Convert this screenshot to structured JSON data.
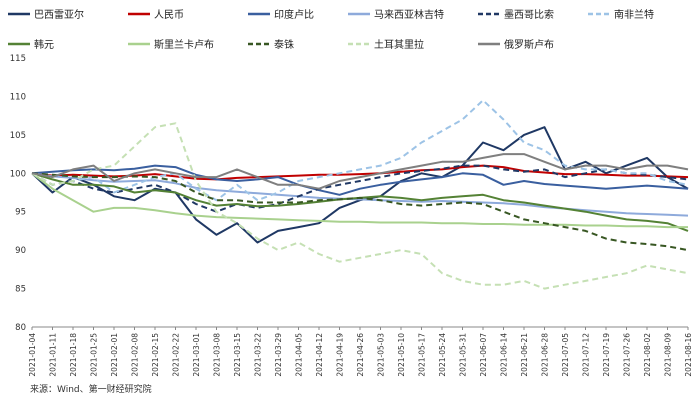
{
  "source_note": "来源：Wind、第一财经研究院",
  "chart_data": {
    "type": "line",
    "title": "",
    "xlabel": "",
    "ylabel": "",
    "ylim": [
      80,
      115
    ],
    "yticks": [
      80,
      85,
      90,
      95,
      100,
      105,
      110,
      115
    ],
    "grid": false,
    "legend_position": "top",
    "x_tick_labels": [
      "2021-01-04",
      "2021-01-11",
      "2021-01-18",
      "2021-01-25",
      "2021-02-01",
      "2021-02-08",
      "2021-02-15",
      "2021-02-22",
      "2021-03-01",
      "2021-03-08",
      "2021-03-15",
      "2021-03-22",
      "2021-03-29",
      "2021-04-05",
      "2021-04-12",
      "2021-04-19",
      "2021-04-26",
      "2021-05-03",
      "2021-05-10",
      "2021-05-17",
      "2021-05-24",
      "2021-05-31",
      "2021-06-07",
      "2021-06-14",
      "2021-06-21",
      "2021-06-28",
      "2021-07-05",
      "2021-07-12",
      "2021-07-19",
      "2021-07-26",
      "2021-08-02",
      "2021-08-09",
      "2021-08-16"
    ],
    "series": [
      {
        "name": "巴西雷亚尔",
        "color": "#1f3864",
        "dash": "solid",
        "values": [
          100,
          97.5,
          99.5,
          98.5,
          97,
          96.5,
          98,
          97.5,
          94,
          92,
          93.5,
          91,
          92.5,
          93,
          93.5,
          95.5,
          96.5,
          97,
          99,
          100,
          99.5,
          101,
          104,
          103,
          105,
          106,
          100.5,
          101.5,
          100,
          101,
          102,
          99.5,
          98
        ]
      },
      {
        "name": "人民币",
        "color": "#c00000",
        "dash": "solid",
        "values": [
          100,
          99.7,
          99.8,
          99.7,
          99.6,
          99.7,
          99.9,
          99.6,
          99.3,
          99.2,
          99.4,
          99.5,
          99.6,
          99.7,
          99.8,
          99.8,
          99.9,
          100,
          100.2,
          100.4,
          100.5,
          100.8,
          101,
          100.8,
          100.3,
          100.1,
          99.9,
          99.9,
          99.8,
          99.7,
          99.7,
          99.6,
          99.5
        ]
      },
      {
        "name": "印度卢比",
        "color": "#3a5f9f",
        "dash": "solid",
        "values": [
          100,
          100.2,
          100.4,
          100.5,
          100.4,
          100.6,
          101,
          100.8,
          99.8,
          99.2,
          99,
          99.2,
          99.5,
          98.5,
          97.8,
          97.2,
          98,
          98.5,
          98.9,
          99.2,
          99.5,
          100,
          99.8,
          98.5,
          99,
          98.6,
          98.4,
          98.2,
          98,
          98.2,
          98.4,
          98.2,
          98
        ]
      },
      {
        "name": "马来西亚林吉特",
        "color": "#8eaadb",
        "dash": "solid",
        "values": [
          100,
          99.6,
          99.4,
          99.1,
          98.9,
          99,
          99.1,
          98.7,
          98.1,
          97.8,
          97.6,
          97.4,
          97.2,
          97,
          96.8,
          96.7,
          96.6,
          96.5,
          96.4,
          96.3,
          96.4,
          96.3,
          96.2,
          96.1,
          95.9,
          95.6,
          95.4,
          95.2,
          95,
          94.8,
          94.7,
          94.6,
          94.5
        ]
      },
      {
        "name": "墨西哥比索",
        "color": "#203864",
        "dash": "dash",
        "values": [
          100,
          98.5,
          99,
          98,
          97.5,
          98,
          98.5,
          97.5,
          96,
          95,
          96,
          95.5,
          96,
          97,
          98,
          98.5,
          99,
          99.5,
          100,
          100.3,
          100.6,
          101,
          101,
          100.5,
          100.2,
          100.5,
          99.5,
          100,
          100.5,
          100,
          99.8,
          99.5,
          99.2
        ]
      },
      {
        "name": "南非兰特",
        "color": "#9dc3e6",
        "dash": "dash",
        "values": [
          100,
          98.5,
          99,
          99.5,
          97.5,
          98.5,
          99.5,
          100,
          98,
          96.5,
          98.5,
          96.5,
          97.5,
          99,
          99.5,
          100,
          100.5,
          101,
          102,
          104,
          105.5,
          107,
          109.5,
          107,
          104,
          103,
          101,
          100.5,
          100.5,
          100,
          100,
          99,
          98.5
        ]
      },
      {
        "name": "韩元",
        "color": "#548235",
        "dash": "solid",
        "values": [
          100,
          99.2,
          98.5,
          98.5,
          98.3,
          97.5,
          97.8,
          97.5,
          96.5,
          95.8,
          96,
          95.7,
          95.8,
          96,
          96.3,
          96.6,
          96.8,
          97,
          96.8,
          96.5,
          96.8,
          97,
          97.2,
          96.5,
          96.2,
          95.8,
          95.4,
          95,
          94.5,
          94,
          93.8,
          93.5,
          92.5
        ]
      },
      {
        "name": "斯里兰卡卢布",
        "color": "#a9d18e",
        "dash": "solid",
        "values": [
          100,
          98,
          96.5,
          95,
          95.5,
          95.5,
          95.2,
          94.8,
          94.5,
          94.3,
          94.2,
          94.1,
          94,
          93.9,
          93.8,
          93.7,
          93.7,
          93.6,
          93.6,
          93.6,
          93.5,
          93.5,
          93.4,
          93.4,
          93.3,
          93.3,
          93.3,
          93.2,
          93.2,
          93.1,
          93.1,
          93,
          93
        ]
      },
      {
        "name": "泰铢",
        "color": "#385723",
        "dash": "dash",
        "values": [
          100,
          99.8,
          99.6,
          99.5,
          99.5,
          99.6,
          99.5,
          99,
          97.5,
          96.5,
          96.5,
          96.2,
          96.2,
          96.2,
          96.5,
          96.6,
          96.8,
          96.5,
          96,
          95.8,
          96,
          96.2,
          96,
          95,
          94,
          93.5,
          93,
          92.5,
          91.5,
          91,
          90.8,
          90.5,
          90
        ]
      },
      {
        "name": "土耳其里拉",
        "color": "#c5e0b4",
        "dash": "dash",
        "values": [
          100,
          98.5,
          99,
          100.5,
          101,
          103.5,
          106,
          106.5,
          99,
          95,
          93.5,
          91.5,
          90,
          91,
          89.5,
          88.5,
          89,
          89.5,
          90,
          89.5,
          87,
          86,
          85.5,
          85.5,
          86,
          85,
          85.5,
          86,
          86.5,
          87,
          88,
          87.5,
          87
        ]
      },
      {
        "name": "俄罗斯卢布",
        "color": "#7f7f7f",
        "dash": "solid",
        "values": [
          100,
          99.5,
          100.5,
          101,
          99,
          100,
          100.5,
          100,
          99.5,
          99.5,
          100.5,
          99.5,
          98.5,
          98.5,
          98,
          99,
          99.5,
          100,
          100.5,
          101,
          101.5,
          101.5,
          102,
          102.5,
          102.5,
          101.5,
          100.5,
          101,
          101,
          100.5,
          101,
          101,
          100.5
        ]
      }
    ]
  }
}
